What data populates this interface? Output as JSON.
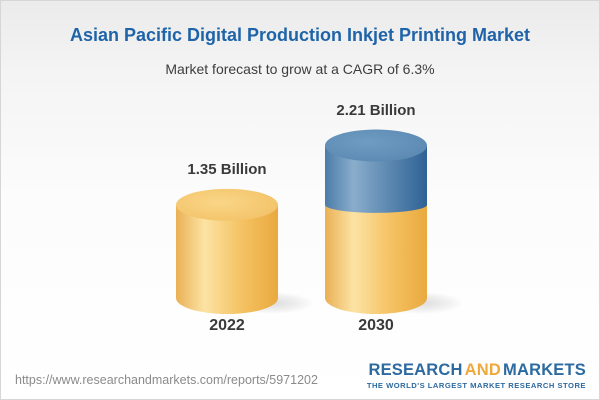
{
  "header": {
    "title": "Asian Pacific Digital Production Inkjet Printing Market",
    "subtitle": "Market forecast to grow at a CAGR of 6.3%"
  },
  "chart_data": {
    "type": "bar",
    "variant": "3d-cylinder",
    "title": "Asian Pacific Digital Production Inkjet Printing Market",
    "subtitle": "Market forecast to grow at a CAGR of 6.3%",
    "cagr_percent": 6.3,
    "unit": "Billion",
    "categories": [
      "2022",
      "2030"
    ],
    "values": [
      1.35,
      2.21
    ],
    "bars": [
      {
        "category": "2022",
        "label": "1.35 Billion",
        "total": 1.35,
        "segments": [
          {
            "value": 1.35,
            "color": "yellow"
          }
        ]
      },
      {
        "category": "2030",
        "label": "2.21 Billion",
        "total": 2.21,
        "segments": [
          {
            "value": 1.35,
            "color": "yellow"
          },
          {
            "value": 0.86,
            "color": "blue"
          }
        ]
      }
    ],
    "colors": {
      "yellow": "#f2bd5e",
      "blue": "#4d7fa9"
    },
    "legend": "none",
    "grid": "off"
  },
  "footer": {
    "url": "https://www.researchandmarkets.com/reports/5971202",
    "logo": {
      "part1": "RESEARCH",
      "part2": "AND",
      "part3": "MARKETS",
      "tagline": "THE WORLD'S LARGEST MARKET RESEARCH STORE",
      "blue": "#2c6aa0",
      "orange": "#efa93a"
    }
  }
}
